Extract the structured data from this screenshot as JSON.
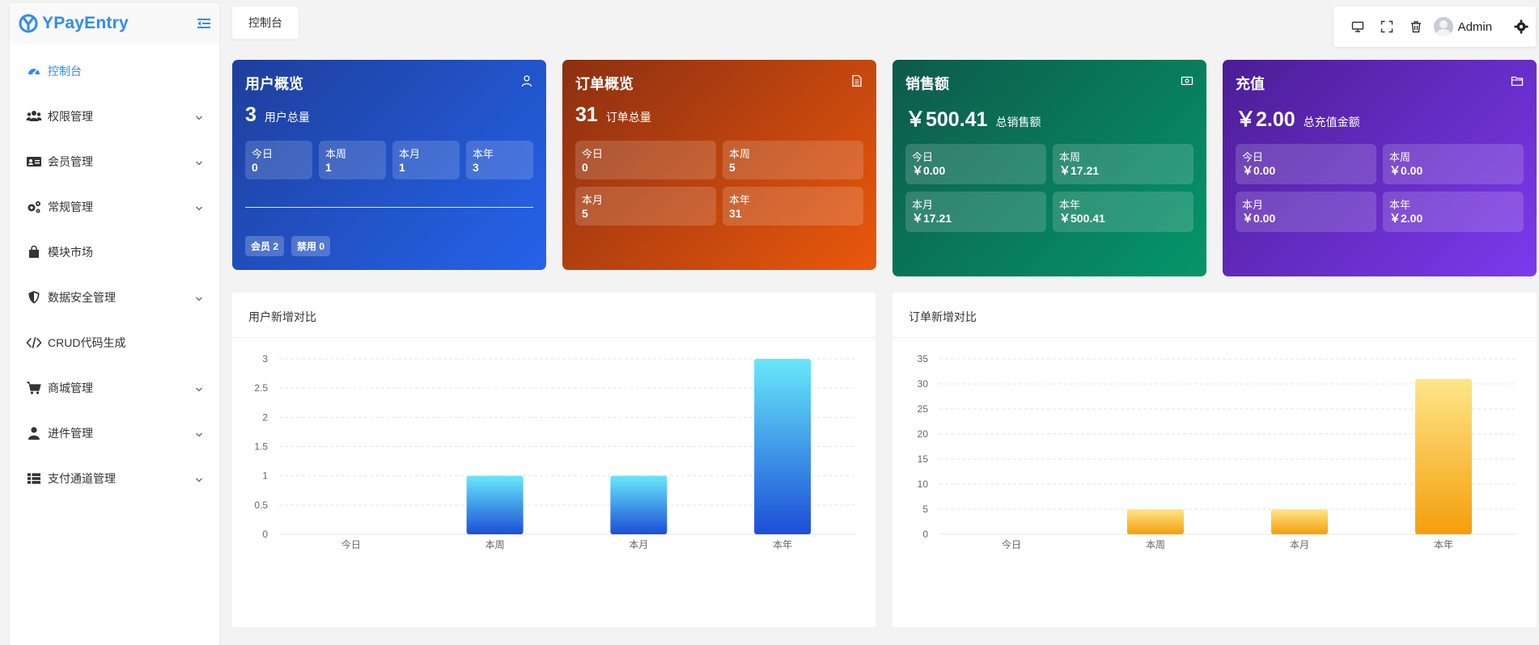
{
  "app": {
    "name": "YPayEntry"
  },
  "sidebar": {
    "items": [
      {
        "label": "控制台",
        "icon": "dashboard-icon",
        "active": true,
        "has_children": false
      },
      {
        "label": "权限管理",
        "icon": "users-icon",
        "has_children": true
      },
      {
        "label": "会员管理",
        "icon": "id-card-icon",
        "has_children": true
      },
      {
        "label": "常规管理",
        "icon": "gears-icon",
        "has_children": true
      },
      {
        "label": "模块市场",
        "icon": "shopping-bag-icon",
        "has_children": false
      },
      {
        "label": "数据安全管理",
        "icon": "shield-icon",
        "has_children": true
      },
      {
        "label": "CRUD代码生成",
        "icon": "code-icon",
        "has_children": false
      },
      {
        "label": "商城管理",
        "icon": "cart-icon",
        "has_children": true
      },
      {
        "label": "进件管理",
        "icon": "user-icon",
        "has_children": true
      },
      {
        "label": "支付通道管理",
        "icon": "list-icon",
        "has_children": true
      }
    ]
  },
  "header": {
    "tab_label": "控制台",
    "user_name": "Admin"
  },
  "cards": {
    "user": {
      "title": "用户概览",
      "big": "3",
      "sub": "用户总量",
      "stats": [
        {
          "label": "今日",
          "value": "0"
        },
        {
          "label": "本周",
          "value": "1"
        },
        {
          "label": "本月",
          "value": "1"
        },
        {
          "label": "本年",
          "value": "3"
        }
      ],
      "badges": [
        "会员 2",
        "禁用 0"
      ]
    },
    "order": {
      "title": "订单概览",
      "big": "31",
      "sub": "订单总量",
      "stats": [
        {
          "label": "今日",
          "value": "0"
        },
        {
          "label": "本周",
          "value": "5"
        },
        {
          "label": "本月",
          "value": "5"
        },
        {
          "label": "本年",
          "value": "31"
        }
      ]
    },
    "sales": {
      "title": "销售额",
      "big": "￥500.41",
      "sub": "总销售额",
      "stats": [
        {
          "label": "今日",
          "value": "￥0.00"
        },
        {
          "label": "本周",
          "value": "￥17.21"
        },
        {
          "label": "本月",
          "value": "￥17.21"
        },
        {
          "label": "本年",
          "value": "￥500.41"
        }
      ]
    },
    "topup": {
      "title": "充值",
      "big": "￥2.00",
      "sub": "总充值金额",
      "stats": [
        {
          "label": "今日",
          "value": "￥0.00"
        },
        {
          "label": "本周",
          "value": "￥0.00"
        },
        {
          "label": "本月",
          "value": "￥0.00"
        },
        {
          "label": "本年",
          "value": "￥2.00"
        }
      ]
    }
  },
  "colors": {
    "accent": "#2f8cf0",
    "user_bar_top": "#67e8f9",
    "user_bar_bottom": "#1d4ed8",
    "order_bar_top": "#fde68a",
    "order_bar_bottom": "#f59e0b"
  },
  "chart_data": [
    {
      "type": "bar",
      "title": "用户新增对比",
      "categories": [
        "今日",
        "本周",
        "本月",
        "本年"
      ],
      "values": [
        0,
        1,
        1,
        3
      ],
      "yticks": [
        "0",
        "0.5",
        "1",
        "1.5",
        "2",
        "2.5",
        "3"
      ],
      "ylim": [
        0,
        3
      ],
      "grid": true
    },
    {
      "type": "bar",
      "title": "订单新增对比",
      "categories": [
        "今日",
        "本周",
        "本月",
        "本年"
      ],
      "values": [
        0,
        5,
        5,
        31
      ],
      "yticks": [
        "0",
        "5",
        "10",
        "15",
        "20",
        "25",
        "30",
        "35"
      ],
      "ylim": [
        0,
        35
      ],
      "grid": true
    }
  ]
}
